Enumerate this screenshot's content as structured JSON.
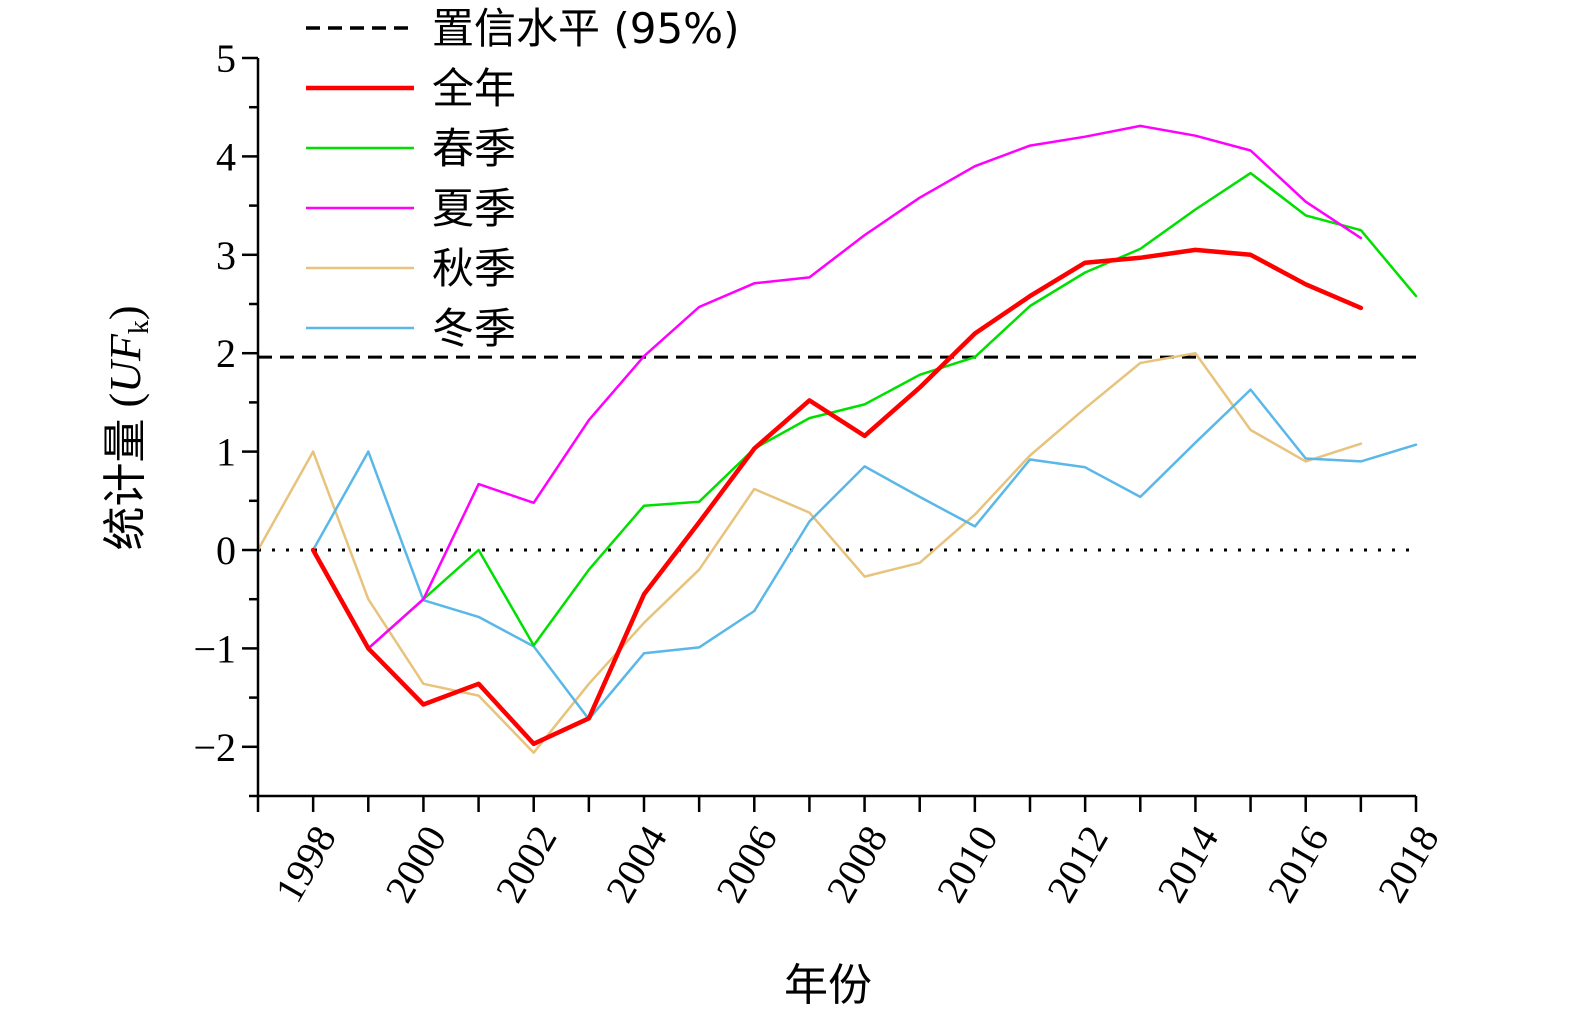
{
  "chart_data": {
    "type": "line",
    "xlabel": "年份",
    "ylabel": "统计量",
    "ylabel_var": "UF",
    "ylabel_sub": "k",
    "xlim": [
      1997,
      2018
    ],
    "ylim": [
      -2.5,
      5
    ],
    "x_ticks": [
      1998,
      2000,
      2002,
      2004,
      2006,
      2008,
      2010,
      2012,
      2014,
      2016,
      2018
    ],
    "y_ticks": [
      -2,
      -1,
      0,
      1,
      2,
      3,
      4,
      5
    ],
    "y_tick_labels": [
      "−2",
      "−1",
      "0",
      "1",
      "2",
      "3",
      "4",
      "5"
    ],
    "grid": false,
    "legend_position": "top-left",
    "reference_lines": [
      {
        "name": "置信水平 (95%)",
        "y": 1.96,
        "style": "dashed",
        "color": "#000000",
        "in_legend": true
      },
      {
        "name": "",
        "y": 0,
        "style": "dotted",
        "color": "#000000",
        "in_legend": false
      }
    ],
    "series": [
      {
        "name": "全年",
        "color": "#ff0000",
        "width": 4.5,
        "x": [
          1998,
          1999,
          2000,
          2001,
          2002,
          2003,
          2004,
          2005,
          2006,
          2007,
          2008,
          2009,
          2010,
          2011,
          2012,
          2013,
          2014,
          2015,
          2016,
          2017
        ],
        "y": [
          0,
          -1.0,
          -1.57,
          -1.36,
          -1.97,
          -1.71,
          -0.45,
          0.28,
          1.03,
          1.52,
          1.16,
          1.65,
          2.2,
          2.58,
          2.92,
          2.97,
          3.05,
          3.0,
          2.7,
          2.46
        ]
      },
      {
        "name": "春季",
        "color": "#00e000",
        "width": 2.5,
        "x": [
          1998,
          1999,
          2000,
          2001,
          2002,
          2003,
          2004,
          2005,
          2006,
          2007,
          2008,
          2009,
          2010,
          2011,
          2012,
          2013,
          2014,
          2015,
          2016,
          2017,
          2018
        ],
        "y": [
          0,
          -1.0,
          -0.5,
          0,
          -0.97,
          -0.2,
          0.45,
          0.49,
          1.03,
          1.34,
          1.48,
          1.78,
          1.96,
          2.48,
          2.82,
          3.06,
          3.46,
          3.83,
          3.4,
          3.25,
          2.58
        ]
      },
      {
        "name": "夏季",
        "color": "#ff00ff",
        "width": 2.5,
        "x": [
          1998,
          1999,
          2000,
          2001,
          2002,
          2003,
          2004,
          2005,
          2006,
          2007,
          2008,
          2009,
          2010,
          2011,
          2012,
          2013,
          2014,
          2015,
          2016,
          2017
        ],
        "y": [
          0,
          -1.0,
          -0.5,
          0.67,
          0.48,
          1.32,
          1.97,
          2.47,
          2.71,
          2.77,
          3.2,
          3.58,
          3.9,
          4.11,
          4.2,
          4.31,
          4.21,
          4.06,
          3.54,
          3.17
        ]
      },
      {
        "name": "秋季",
        "color": "#e8c37d",
        "width": 2.5,
        "x": [
          1997,
          1998,
          1999,
          2000,
          2001,
          2002,
          2003,
          2004,
          2005,
          2006,
          2007,
          2008,
          2009,
          2010,
          2011,
          2012,
          2013,
          2014,
          2015,
          2016,
          2017
        ],
        "y": [
          0,
          1.0,
          -0.5,
          -1.36,
          -1.48,
          -2.06,
          -1.36,
          -0.74,
          -0.2,
          0.62,
          0.38,
          -0.27,
          -0.13,
          0.36,
          0.96,
          1.44,
          1.9,
          2.0,
          1.22,
          0.9,
          1.08
        ]
      },
      {
        "name": "冬季",
        "color": "#5ab8e8",
        "width": 2.5,
        "x": [
          1998,
          1999,
          2000,
          2001,
          2002,
          2003,
          2004,
          2005,
          2006,
          2007,
          2008,
          2009,
          2010,
          2011,
          2012,
          2013,
          2014,
          2015,
          2016,
          2017,
          2018
        ],
        "y": [
          0,
          1.0,
          -0.51,
          -0.68,
          -0.98,
          -1.72,
          -1.05,
          -0.99,
          -0.62,
          0.29,
          0.85,
          0.54,
          0.24,
          0.92,
          0.84,
          0.54,
          1.09,
          1.63,
          0.93,
          0.9,
          1.07
        ]
      }
    ]
  }
}
